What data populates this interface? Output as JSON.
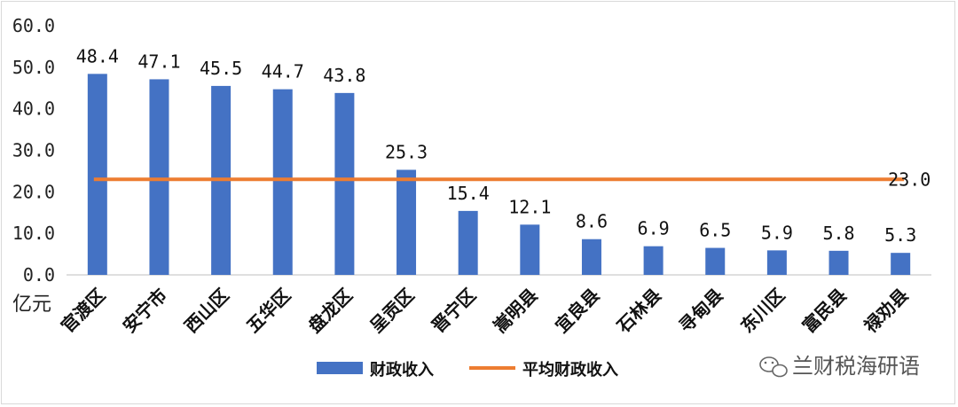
{
  "chart_data": {
    "type": "bar",
    "title": "",
    "unit_label": "亿元",
    "ylim": [
      0,
      60
    ],
    "yticks": [
      "0.0",
      "10.0",
      "20.0",
      "30.0",
      "40.0",
      "50.0",
      "60.0"
    ],
    "categories": [
      "官渡区",
      "安宁市",
      "西山区",
      "五华区",
      "盘龙区",
      "呈贡区",
      "晋宁区",
      "嵩明县",
      "宜良县",
      "石林县",
      "寻甸县",
      "东川区",
      "富民县",
      "禄劝县"
    ],
    "series": [
      {
        "name": "财政收入",
        "type": "bar",
        "color": "#4472c4",
        "values": [
          48.4,
          47.1,
          45.5,
          44.7,
          43.8,
          25.3,
          15.4,
          12.1,
          8.6,
          6.9,
          6.5,
          5.9,
          5.8,
          5.3
        ],
        "labels": [
          "48.4",
          "47.1",
          "45.5",
          "44.7",
          "43.8",
          "25.3",
          "15.4",
          "12.1",
          "8.6",
          "6.9",
          "6.5",
          "5.9",
          "5.8",
          "5.3"
        ]
      },
      {
        "name": "平均财政收入",
        "type": "line",
        "color": "#ed7d31",
        "value": 23.0,
        "label": "23.0"
      }
    ],
    "legend_position": "bottom",
    "grid": false
  },
  "watermark": "兰财税海研语",
  "watermark_icon": "wechat-icon"
}
